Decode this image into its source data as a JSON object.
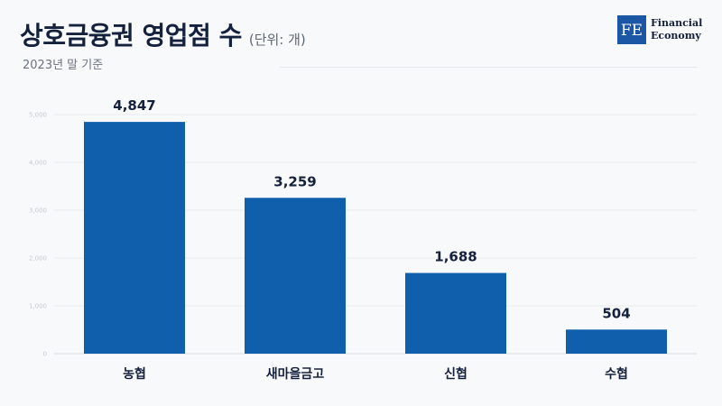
{
  "header": {
    "title": "상호금융권 영업점 수",
    "unit": "(단위: 개)",
    "subtitle": "2023년 말 기준"
  },
  "logo": {
    "mark": "FE",
    "line1": "Financial",
    "line2": "Economy"
  },
  "chart_data": {
    "type": "bar",
    "title": "상호금융권 영업점 수",
    "subtitle": "2023년 말 기준",
    "unit": "(단위: 개)",
    "categories": [
      "농협",
      "새마을금고",
      "신협",
      "수협"
    ],
    "values": [
      4847,
      3259,
      1688,
      504
    ],
    "value_labels": [
      "4,847",
      "3,259",
      "1,688",
      "504"
    ],
    "yticks": [
      0,
      1000,
      2000,
      3000,
      4000,
      5000
    ],
    "ytick_labels": [
      "0",
      "1,000",
      "2,000",
      "3,000",
      "4,000",
      "5,000"
    ],
    "ylim": [
      0,
      5000
    ],
    "grid": true,
    "legend": "none",
    "bar_color": "#0f5fac"
  }
}
